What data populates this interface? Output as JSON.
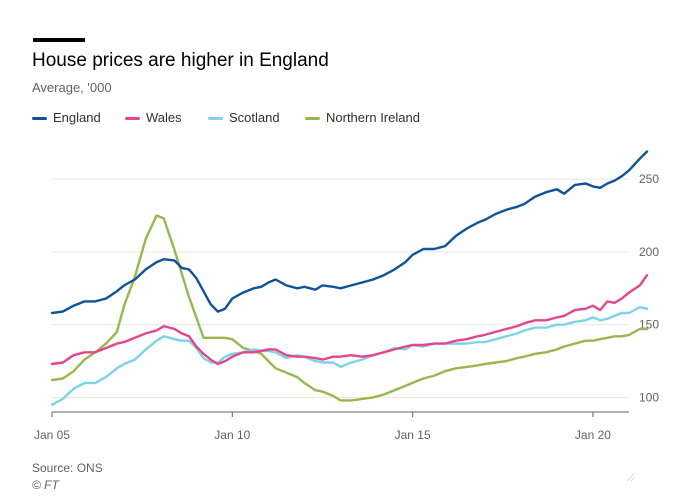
{
  "title": "House prices are higher in England",
  "subtitle": "Average, '000",
  "source": "Source: ONS",
  "copyright": "© FT",
  "chart_data": {
    "type": "line",
    "title": "House prices are higher in England",
    "subtitle": "Average, '000",
    "xlabel": "",
    "ylabel": "",
    "x_unit": "year",
    "xlim": [
      2005.0,
      2021.0
    ],
    "ylim": [
      90,
      270
    ],
    "y_ticks": [
      100,
      150,
      200,
      250
    ],
    "x_ticks": [
      {
        "value": 2005,
        "label": "Jan 05"
      },
      {
        "value": 2010,
        "label": "Jan 10"
      },
      {
        "value": 2015,
        "label": "Jan 15"
      },
      {
        "value": 2020,
        "label": "Jan 20"
      }
    ],
    "grid": "horizontal",
    "legend_position": "top-left",
    "series": [
      {
        "name": "England",
        "color": "#0f5499",
        "points": [
          [
            2005.0,
            158
          ],
          [
            2005.3,
            159
          ],
          [
            2005.6,
            163
          ],
          [
            2005.9,
            166
          ],
          [
            2006.2,
            166
          ],
          [
            2006.5,
            168
          ],
          [
            2006.8,
            173
          ],
          [
            2007.0,
            177
          ],
          [
            2007.3,
            181
          ],
          [
            2007.6,
            188
          ],
          [
            2007.9,
            193
          ],
          [
            2008.1,
            195
          ],
          [
            2008.4,
            194
          ],
          [
            2008.6,
            189
          ],
          [
            2008.8,
            188
          ],
          [
            2009.0,
            182
          ],
          [
            2009.2,
            173
          ],
          [
            2009.4,
            164
          ],
          [
            2009.6,
            159
          ],
          [
            2009.8,
            161
          ],
          [
            2010.0,
            168
          ],
          [
            2010.3,
            172
          ],
          [
            2010.6,
            175
          ],
          [
            2010.8,
            176
          ],
          [
            2011.0,
            179
          ],
          [
            2011.2,
            181
          ],
          [
            2011.5,
            177
          ],
          [
            2011.8,
            175
          ],
          [
            2012.0,
            176
          ],
          [
            2012.3,
            174
          ],
          [
            2012.5,
            177
          ],
          [
            2012.8,
            176
          ],
          [
            2013.0,
            175
          ],
          [
            2013.3,
            177
          ],
          [
            2013.6,
            179
          ],
          [
            2013.9,
            181
          ],
          [
            2014.2,
            184
          ],
          [
            2014.5,
            188
          ],
          [
            2014.8,
            193
          ],
          [
            2015.0,
            198
          ],
          [
            2015.3,
            202
          ],
          [
            2015.6,
            202
          ],
          [
            2015.9,
            204
          ],
          [
            2016.2,
            211
          ],
          [
            2016.5,
            216
          ],
          [
            2016.8,
            220
          ],
          [
            2017.0,
            222
          ],
          [
            2017.3,
            226
          ],
          [
            2017.6,
            229
          ],
          [
            2017.9,
            231
          ],
          [
            2018.1,
            233
          ],
          [
            2018.4,
            238
          ],
          [
            2018.7,
            241
          ],
          [
            2019.0,
            243
          ],
          [
            2019.2,
            240
          ],
          [
            2019.5,
            246
          ],
          [
            2019.8,
            247
          ],
          [
            2020.0,
            245
          ],
          [
            2020.2,
            244
          ],
          [
            2020.4,
            247
          ],
          [
            2020.6,
            249
          ],
          [
            2020.8,
            252
          ],
          [
            2021.0,
            256
          ],
          [
            2021.3,
            264
          ],
          [
            2021.5,
            269
          ]
        ]
      },
      {
        "name": "Wales",
        "color": "#e5468b",
        "points": [
          [
            2005.0,
            123
          ],
          [
            2005.3,
            124
          ],
          [
            2005.6,
            129
          ],
          [
            2005.9,
            131
          ],
          [
            2006.2,
            131
          ],
          [
            2006.5,
            134
          ],
          [
            2006.8,
            137
          ],
          [
            2007.0,
            138
          ],
          [
            2007.3,
            141
          ],
          [
            2007.6,
            144
          ],
          [
            2007.9,
            146
          ],
          [
            2008.1,
            149
          ],
          [
            2008.4,
            147
          ],
          [
            2008.6,
            144
          ],
          [
            2008.8,
            142
          ],
          [
            2009.0,
            135
          ],
          [
            2009.2,
            130
          ],
          [
            2009.4,
            126
          ],
          [
            2009.6,
            123
          ],
          [
            2009.8,
            125
          ],
          [
            2010.0,
            128
          ],
          [
            2010.3,
            131
          ],
          [
            2010.6,
            131
          ],
          [
            2010.8,
            132
          ],
          [
            2011.0,
            133
          ],
          [
            2011.2,
            133
          ],
          [
            2011.5,
            129
          ],
          [
            2011.8,
            128
          ],
          [
            2012.0,
            128
          ],
          [
            2012.3,
            127
          ],
          [
            2012.5,
            126
          ],
          [
            2012.8,
            128
          ],
          [
            2013.0,
            128
          ],
          [
            2013.3,
            129
          ],
          [
            2013.6,
            128
          ],
          [
            2013.9,
            129
          ],
          [
            2014.2,
            131
          ],
          [
            2014.5,
            133
          ],
          [
            2014.8,
            135
          ],
          [
            2015.0,
            136
          ],
          [
            2015.3,
            136
          ],
          [
            2015.6,
            137
          ],
          [
            2015.9,
            137
          ],
          [
            2016.2,
            139
          ],
          [
            2016.5,
            140
          ],
          [
            2016.8,
            142
          ],
          [
            2017.0,
            143
          ],
          [
            2017.3,
            145
          ],
          [
            2017.6,
            147
          ],
          [
            2017.9,
            149
          ],
          [
            2018.1,
            151
          ],
          [
            2018.4,
            153
          ],
          [
            2018.7,
            153
          ],
          [
            2019.0,
            155
          ],
          [
            2019.2,
            156
          ],
          [
            2019.5,
            160
          ],
          [
            2019.8,
            161
          ],
          [
            2020.0,
            163
          ],
          [
            2020.2,
            160
          ],
          [
            2020.4,
            166
          ],
          [
            2020.6,
            165
          ],
          [
            2020.8,
            168
          ],
          [
            2021.0,
            172
          ],
          [
            2021.3,
            177
          ],
          [
            2021.5,
            184
          ]
        ]
      },
      {
        "name": "Scotland",
        "color": "#7dd3e8",
        "points": [
          [
            2005.0,
            95
          ],
          [
            2005.3,
            99
          ],
          [
            2005.6,
            106
          ],
          [
            2005.9,
            110
          ],
          [
            2006.2,
            110
          ],
          [
            2006.5,
            114
          ],
          [
            2006.8,
            120
          ],
          [
            2007.0,
            123
          ],
          [
            2007.3,
            126
          ],
          [
            2007.6,
            133
          ],
          [
            2007.9,
            139
          ],
          [
            2008.1,
            142
          ],
          [
            2008.4,
            140
          ],
          [
            2008.6,
            139
          ],
          [
            2008.8,
            139
          ],
          [
            2009.0,
            134
          ],
          [
            2009.2,
            127
          ],
          [
            2009.4,
            124
          ],
          [
            2009.6,
            124
          ],
          [
            2009.8,
            128
          ],
          [
            2010.0,
            130
          ],
          [
            2010.3,
            131
          ],
          [
            2010.6,
            133
          ],
          [
            2010.8,
            132
          ],
          [
            2011.0,
            132
          ],
          [
            2011.2,
            131
          ],
          [
            2011.5,
            127
          ],
          [
            2011.8,
            129
          ],
          [
            2012.0,
            128
          ],
          [
            2012.3,
            125
          ],
          [
            2012.5,
            124
          ],
          [
            2012.8,
            124
          ],
          [
            2013.0,
            121
          ],
          [
            2013.3,
            124
          ],
          [
            2013.6,
            126
          ],
          [
            2013.9,
            129
          ],
          [
            2014.2,
            131
          ],
          [
            2014.5,
            134
          ],
          [
            2014.8,
            133
          ],
          [
            2015.0,
            136
          ],
          [
            2015.3,
            135
          ],
          [
            2015.6,
            137
          ],
          [
            2015.9,
            137
          ],
          [
            2016.2,
            137
          ],
          [
            2016.5,
            137
          ],
          [
            2016.8,
            138
          ],
          [
            2017.0,
            138
          ],
          [
            2017.3,
            140
          ],
          [
            2017.6,
            142
          ],
          [
            2017.9,
            144
          ],
          [
            2018.1,
            146
          ],
          [
            2018.4,
            148
          ],
          [
            2018.7,
            148
          ],
          [
            2019.0,
            150
          ],
          [
            2019.2,
            150
          ],
          [
            2019.5,
            152
          ],
          [
            2019.8,
            153
          ],
          [
            2020.0,
            155
          ],
          [
            2020.2,
            153
          ],
          [
            2020.4,
            154
          ],
          [
            2020.6,
            156
          ],
          [
            2020.8,
            158
          ],
          [
            2021.0,
            158
          ],
          [
            2021.3,
            162
          ],
          [
            2021.5,
            161
          ]
        ]
      },
      {
        "name": "Northern Ireland",
        "color": "#96b84c",
        "points": [
          [
            2005.0,
            112
          ],
          [
            2005.3,
            113
          ],
          [
            2005.6,
            118
          ],
          [
            2005.9,
            126
          ],
          [
            2006.2,
            131
          ],
          [
            2006.5,
            137
          ],
          [
            2006.8,
            145
          ],
          [
            2007.0,
            163
          ],
          [
            2007.3,
            183
          ],
          [
            2007.6,
            209
          ],
          [
            2007.9,
            225
          ],
          [
            2008.1,
            223
          ],
          [
            2008.4,
            201
          ],
          [
            2008.6,
            185
          ],
          [
            2008.8,
            169
          ],
          [
            2009.0,
            155
          ],
          [
            2009.2,
            141
          ],
          [
            2009.4,
            141
          ],
          [
            2009.6,
            141
          ],
          [
            2009.8,
            141
          ],
          [
            2010.0,
            140
          ],
          [
            2010.3,
            134
          ],
          [
            2010.6,
            132
          ],
          [
            2010.8,
            130
          ],
          [
            2011.0,
            125
          ],
          [
            2011.2,
            120
          ],
          [
            2011.5,
            117
          ],
          [
            2011.8,
            114
          ],
          [
            2012.0,
            110
          ],
          [
            2012.3,
            105
          ],
          [
            2012.5,
            104
          ],
          [
            2012.8,
            101
          ],
          [
            2013.0,
            98
          ],
          [
            2013.3,
            98
          ],
          [
            2013.6,
            99
          ],
          [
            2013.9,
            100
          ],
          [
            2014.2,
            102
          ],
          [
            2014.5,
            105
          ],
          [
            2014.8,
            108
          ],
          [
            2015.0,
            110
          ],
          [
            2015.3,
            113
          ],
          [
            2015.6,
            115
          ],
          [
            2015.9,
            118
          ],
          [
            2016.2,
            120
          ],
          [
            2016.5,
            121
          ],
          [
            2016.8,
            122
          ],
          [
            2017.0,
            123
          ],
          [
            2017.3,
            124
          ],
          [
            2017.6,
            125
          ],
          [
            2017.9,
            127
          ],
          [
            2018.1,
            128
          ],
          [
            2018.4,
            130
          ],
          [
            2018.7,
            131
          ],
          [
            2019.0,
            133
          ],
          [
            2019.2,
            135
          ],
          [
            2019.5,
            137
          ],
          [
            2019.8,
            139
          ],
          [
            2020.0,
            139
          ],
          [
            2020.2,
            140
          ],
          [
            2020.4,
            141
          ],
          [
            2020.6,
            142
          ],
          [
            2020.8,
            142
          ],
          [
            2021.0,
            143
          ],
          [
            2021.3,
            147
          ],
          [
            2021.5,
            147
          ]
        ]
      }
    ]
  }
}
